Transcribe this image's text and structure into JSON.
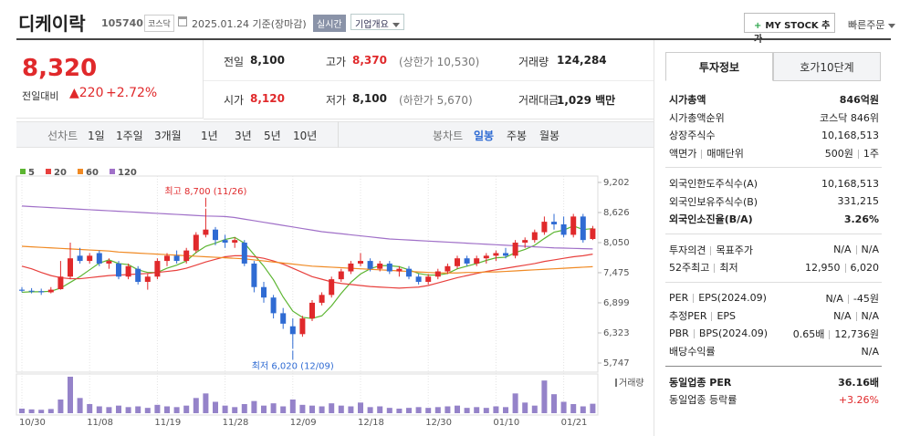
{
  "header": {
    "name": "디케이락",
    "code": "105740",
    "market": "코스닥",
    "date": "2025.01.24 기준(장마감)",
    "realtime": "실시간",
    "company_button": "기업개요",
    "mystock_button": "MY STOCK 추가",
    "quick_order": "빠른주문"
  },
  "price": {
    "current": "8,320",
    "change_label": "전일대비",
    "change": "▲220",
    "change_rate": "+2.72%"
  },
  "summary": [
    {
      "label": "전일",
      "value": "8,100"
    },
    {
      "label": "고가",
      "value": "8,370",
      "note": "(상한가 10,530)",
      "color": "#e0292b"
    },
    {
      "label": "거래량",
      "value": "124,284"
    },
    {
      "label": "시가",
      "value": "8,120",
      "color": "#e0292b"
    },
    {
      "label": "저가",
      "value": "8,100",
      "note": "(하한가 5,670)"
    },
    {
      "label": "거래대금",
      "value": "1,029 백만"
    }
  ],
  "period_tabs": {
    "line_label": "선차트",
    "line": [
      "1일",
      "1주일",
      "3개월",
      "1년",
      "3년",
      "5년",
      "10년"
    ],
    "candle_label": "봉차트",
    "candle": [
      "일봉",
      "주봉",
      "월봉"
    ]
  },
  "chart_data": {
    "type": "candlestick",
    "categories": [
      "10/30",
      null,
      null,
      null,
      null,
      null,
      null,
      "11/08",
      null,
      null,
      null,
      null,
      null,
      null,
      "11/19",
      null,
      null,
      null,
      null,
      null,
      null,
      "11/28",
      null,
      null,
      null,
      null,
      null,
      null,
      "12/09",
      null,
      null,
      null,
      null,
      null,
      null,
      "12/18",
      null,
      null,
      null,
      null,
      null,
      null,
      "12/30",
      null,
      null,
      null,
      null,
      null,
      null,
      "01/10",
      null,
      null,
      null,
      null,
      null,
      null,
      "01/21",
      null,
      null,
      null
    ],
    "candles": {
      "up_color": "#e0292b",
      "down_color": "#2f6bd3",
      "open": [
        7150,
        7130,
        7120,
        7100,
        7160,
        7400,
        7800,
        7700,
        7850,
        7650,
        7650,
        7400,
        7550,
        7300,
        7400,
        7700,
        7800,
        7700,
        7900,
        8200,
        8300,
        8100,
        8050,
        8050,
        7650,
        7200,
        7000,
        6700,
        6450,
        6300,
        6600,
        6900,
        7050,
        7350,
        7500,
        7650,
        7700,
        7550,
        7650,
        7500,
        7550,
        7400,
        7300,
        7400,
        7500,
        7600,
        7750,
        7650,
        7750,
        7800,
        7850,
        7800,
        8050,
        8100,
        8250,
        8450,
        8400,
        8200,
        8550,
        8120
      ],
      "high": [
        7200,
        7180,
        7170,
        7200,
        7700,
        8050,
        7950,
        7850,
        7900,
        7750,
        7700,
        7650,
        7600,
        7450,
        7750,
        7850,
        7900,
        7950,
        8250,
        8700,
        8350,
        8200,
        8150,
        8100,
        7700,
        7300,
        7050,
        6800,
        6600,
        6650,
        6950,
        7100,
        7400,
        7550,
        7700,
        7850,
        7750,
        7700,
        7700,
        7600,
        7600,
        7450,
        7450,
        7550,
        7650,
        7800,
        7800,
        7800,
        7850,
        7900,
        7950,
        8100,
        8150,
        8300,
        8550,
        8600,
        8550,
        8600,
        8600,
        8370
      ],
      "low": [
        7100,
        7080,
        7050,
        7080,
        7150,
        7350,
        7650,
        7650,
        7600,
        7550,
        7350,
        7350,
        7250,
        7150,
        7350,
        7600,
        7650,
        7650,
        7850,
        8150,
        8000,
        7950,
        7950,
        7600,
        7100,
        6900,
        6600,
        6400,
        6020,
        6250,
        6550,
        6850,
        7000,
        7300,
        7450,
        7600,
        7500,
        7500,
        7450,
        7400,
        7350,
        7250,
        7250,
        7350,
        7450,
        7550,
        7600,
        7600,
        7650,
        7700,
        7750,
        7750,
        7950,
        8050,
        8200,
        8300,
        8150,
        8150,
        8050,
        8100
      ],
      "close": [
        7130,
        7120,
        7100,
        7150,
        7400,
        7750,
        7700,
        7800,
        7650,
        7700,
        7400,
        7600,
        7300,
        7400,
        7700,
        7800,
        7700,
        7900,
        8200,
        8300,
        8100,
        8050,
        8100,
        7650,
        7200,
        7000,
        6700,
        6500,
        6300,
        6600,
        6900,
        7050,
        7350,
        7500,
        7650,
        7700,
        7550,
        7650,
        7500,
        7550,
        7400,
        7300,
        7400,
        7500,
        7600,
        7750,
        7650,
        7750,
        7800,
        7850,
        7800,
        8050,
        8100,
        8250,
        8450,
        8400,
        8200,
        8550,
        8100,
        8320
      ]
    },
    "series": [
      {
        "name": "5",
        "color": "#5cb531",
        "values": [
          7100,
          7110,
          7110,
          7120,
          7180,
          7290,
          7400,
          7530,
          7660,
          7720,
          7650,
          7630,
          7530,
          7480,
          7480,
          7560,
          7620,
          7700,
          7860,
          7980,
          8040,
          8110,
          8150,
          8040,
          7820,
          7600,
          7340,
          7010,
          6740,
          6620,
          6600,
          6650,
          6840,
          7080,
          7290,
          7450,
          7550,
          7610,
          7610,
          7590,
          7530,
          7460,
          7430,
          7430,
          7460,
          7550,
          7600,
          7650,
          7710,
          7760,
          7770,
          7860,
          7920,
          8000,
          8130,
          8250,
          8290,
          8370,
          8300,
          8320
        ]
      },
      {
        "name": "20",
        "color": "#e8403d",
        "values": [
          7600,
          7550,
          7480,
          7420,
          7380,
          7360,
          7360,
          7380,
          7400,
          7420,
          7430,
          7440,
          7450,
          7460,
          7480,
          7500,
          7520,
          7560,
          7620,
          7680,
          7730,
          7780,
          7800,
          7800,
          7780,
          7750,
          7700,
          7640,
          7560,
          7480,
          7400,
          7350,
          7300,
          7270,
          7250,
          7230,
          7210,
          7200,
          7190,
          7180,
          7190,
          7200,
          7230,
          7280,
          7330,
          7380,
          7420,
          7460,
          7500,
          7530,
          7560,
          7590,
          7620,
          7650,
          7690,
          7720,
          7750,
          7780,
          7800,
          7830
        ]
      },
      {
        "name": "60",
        "color": "#f08a24",
        "values": [
          7980,
          7970,
          7960,
          7950,
          7940,
          7930,
          7920,
          7910,
          7900,
          7890,
          7870,
          7860,
          7850,
          7840,
          7830,
          7820,
          7810,
          7800,
          7790,
          7780,
          7770,
          7760,
          7750,
          7740,
          7720,
          7700,
          7680,
          7660,
          7640,
          7620,
          7600,
          7590,
          7580,
          7570,
          7560,
          7550,
          7540,
          7530,
          7520,
          7510,
          7500,
          7490,
          7480,
          7470,
          7470,
          7470,
          7480,
          7480,
          7490,
          7490,
          7500,
          7510,
          7520,
          7530,
          7540,
          7550,
          7560,
          7570,
          7580,
          7590
        ]
      },
      {
        "name": "120",
        "color": "#a070c8",
        "values": [
          8750,
          8740,
          8730,
          8720,
          8710,
          8700,
          8690,
          8680,
          8670,
          8660,
          8650,
          8640,
          8630,
          8620,
          8610,
          8600,
          8590,
          8580,
          8570,
          8560,
          8555,
          8550,
          8530,
          8500,
          8470,
          8440,
          8410,
          8380,
          8350,
          8320,
          8290,
          8260,
          8240,
          8220,
          8200,
          8180,
          8160,
          8140,
          8120,
          8110,
          8100,
          8090,
          8080,
          8070,
          8060,
          8050,
          8040,
          8030,
          8020,
          8010,
          8000,
          7990,
          7980,
          7970,
          7960,
          7950,
          7945,
          7940,
          7935,
          7930
        ]
      }
    ],
    "volume": {
      "name": "거래량",
      "color": "#9583c9",
      "values": [
        60000,
        50000,
        45000,
        55000,
        180000,
        480000,
        200000,
        120000,
        90000,
        80000,
        100000,
        80000,
        90000,
        70000,
        110000,
        90000,
        80000,
        100000,
        200000,
        260000,
        150000,
        100000,
        80000,
        120000,
        160000,
        100000,
        130000,
        90000,
        180000,
        110000,
        100000,
        90000,
        130000,
        100000,
        90000,
        140000,
        80000,
        90000,
        70000,
        60000,
        70000,
        80000,
        70000,
        80000,
        90000,
        100000,
        70000,
        80000,
        70000,
        90000,
        80000,
        260000,
        140000,
        100000,
        430000,
        250000,
        150000,
        120000,
        90000,
        124284
      ]
    },
    "annotations": [
      "최고 8,700 (11/26)",
      "최저 6,020 (12/09)"
    ],
    "ylim": [
      5747,
      9202
    ],
    "yticks": [
      {
        "value": 9202,
        "label": "9,202"
      },
      {
        "value": 8626,
        "label": "8,626"
      },
      {
        "value": 8050,
        "label": "8,050"
      },
      {
        "value": 7475,
        "label": "7,475"
      },
      {
        "value": 6899,
        "label": "6,899"
      },
      {
        "value": 6323,
        "label": "6,323"
      },
      {
        "value": 5747,
        "label": "5,747"
      }
    ],
    "grid": false
  },
  "invest_tabs": [
    "투자정보",
    "호가10단계"
  ],
  "invest_info": [
    [
      {
        "label": [
          "시가총액"
        ],
        "value": [
          "846억원"
        ],
        "bold": true
      },
      {
        "label": [
          "시가총액순위"
        ],
        "value": [
          "코스닥 846위"
        ]
      },
      {
        "label": [
          "상장주식수"
        ],
        "value": [
          "10,168,513"
        ]
      },
      {
        "label": [
          "액면가",
          "매매단위"
        ],
        "value": [
          "500원",
          "1주"
        ]
      }
    ],
    [
      {
        "label": [
          "외국인한도주식수(A)"
        ],
        "value": [
          "10,168,513"
        ]
      },
      {
        "label": [
          "외국인보유주식수(B)"
        ],
        "value": [
          "331,215"
        ]
      },
      {
        "label": [
          "외국인소진율(B/A)"
        ],
        "value": [
          "3.26%"
        ],
        "bold": true
      }
    ],
    [
      {
        "label": [
          "투자의견",
          "목표주가"
        ],
        "value": [
          "N/A",
          "N/A"
        ]
      },
      {
        "label": [
          "52주최고",
          "최저"
        ],
        "value": [
          "12,950",
          "6,020"
        ]
      }
    ],
    [
      {
        "label": [
          "PER",
          "EPS(2024.09)"
        ],
        "value": [
          "N/A",
          "-45원"
        ]
      },
      {
        "label": [
          "추정PER",
          "EPS"
        ],
        "value": [
          "N/A",
          "N/A"
        ]
      },
      {
        "label": [
          "PBR",
          "BPS(2024.09)"
        ],
        "value": [
          "0.65배",
          "12,736원"
        ]
      },
      {
        "label": [
          "배당수익률"
        ],
        "value": [
          "N/A"
        ]
      }
    ],
    [
      {
        "label": [
          "동일업종 PER"
        ],
        "value": [
          "36.16배"
        ],
        "bold": true
      },
      {
        "label": [
          "동일업종 등락률"
        ],
        "value": [
          "+3.26%"
        ],
        "color": "#e0292b"
      }
    ]
  ]
}
